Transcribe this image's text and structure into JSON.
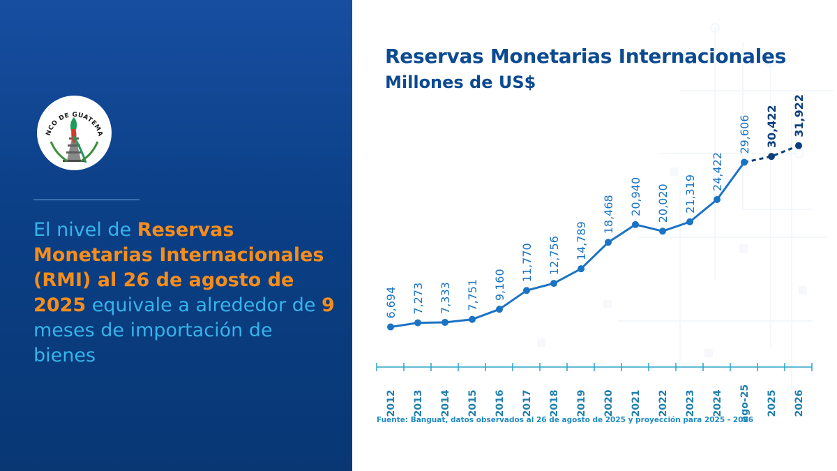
{
  "left": {
    "seal_text": "BANCO DE GUATEMALA",
    "headline": {
      "p1": "El nivel de ",
      "p2": "Reservas Monetarias Internacionales (RMI) al 26 de agosto de 2025",
      "p3": " equivale a alrededor de ",
      "p4": "9",
      "p5": " meses de importación de bienes"
    }
  },
  "colors": {
    "panel": "#0b3f86",
    "headline_blue": "#36b4ea",
    "highlight_orange": "#f58d1c",
    "line_observed": "#1a73c4",
    "line_projected": "#0d3f7f",
    "axis": "#2aa3c7"
  },
  "chart_data": {
    "type": "line",
    "title": "Reservas Monetarias Internacionales",
    "subtitle": "Millones de US$",
    "categories": [
      "2012",
      "2013",
      "2014",
      "2015",
      "2016",
      "2017",
      "2018",
      "2019",
      "2020",
      "2021",
      "2022",
      "2023",
      "2024",
      "ago-25",
      "2025",
      "2026"
    ],
    "values": [
      6694,
      7273,
      7333,
      7751,
      9160,
      11770,
      12756,
      14789,
      18468,
      20940,
      20020,
      21319,
      24422,
      29606,
      30422,
      31922
    ],
    "labels": [
      "6,694",
      "7,273",
      "7,333",
      "7,751",
      "9,160",
      "11,770",
      "12,756",
      "14,789",
      "18,468",
      "20,940",
      "20,020",
      "21,319",
      "24,422",
      "29,606",
      "30,422",
      "31,922"
    ],
    "observed_count": 14,
    "projected_from_index": 13,
    "grid": false,
    "legend": "none",
    "source": "Fuente: Banguat, datos observados al 26 de agosto de 2025 y proyección para 2025 - 2026"
  }
}
